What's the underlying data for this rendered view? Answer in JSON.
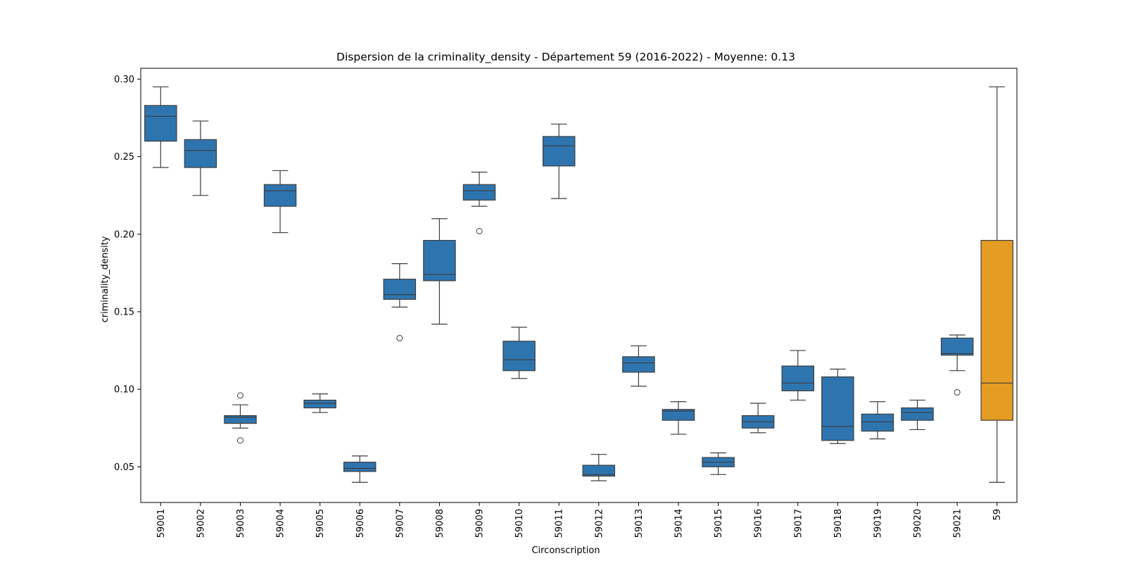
{
  "chart_data": {
    "type": "boxplot",
    "title": "Dispersion de la criminality_density - Département 59 (2016-2022) - Moyenne: 0.13",
    "xlabel": "Circonscription",
    "ylabel": "criminality_density",
    "ylim": [
      0.027,
      0.307
    ],
    "yticks": [
      0.05,
      0.1,
      0.15,
      0.2,
      0.25,
      0.3
    ],
    "ytick_labels": [
      "0.05",
      "0.10",
      "0.15",
      "0.20",
      "0.25",
      "0.30"
    ],
    "grid": false,
    "colors": {
      "default": "#2e75b0",
      "highlight": "#e49c23",
      "line": "#3d3d3d"
    },
    "boxes": [
      {
        "label": "59001",
        "whislo": 0.243,
        "q1": 0.26,
        "med": 0.276,
        "q3": 0.283,
        "whishi": 0.295,
        "fliers": []
      },
      {
        "label": "59002",
        "whislo": 0.225,
        "q1": 0.243,
        "med": 0.254,
        "q3": 0.261,
        "whishi": 0.273,
        "fliers": []
      },
      {
        "label": "59003",
        "whislo": 0.075,
        "q1": 0.078,
        "med": 0.082,
        "q3": 0.083,
        "whishi": 0.09,
        "fliers": [
          0.096,
          0.067
        ]
      },
      {
        "label": "59004",
        "whislo": 0.201,
        "q1": 0.218,
        "med": 0.228,
        "q3": 0.232,
        "whishi": 0.241,
        "fliers": []
      },
      {
        "label": "59005",
        "whislo": 0.085,
        "q1": 0.088,
        "med": 0.091,
        "q3": 0.093,
        "whishi": 0.097,
        "fliers": []
      },
      {
        "label": "59006",
        "whislo": 0.04,
        "q1": 0.047,
        "med": 0.049,
        "q3": 0.053,
        "whishi": 0.057,
        "fliers": []
      },
      {
        "label": "59007",
        "whislo": 0.153,
        "q1": 0.158,
        "med": 0.161,
        "q3": 0.171,
        "whishi": 0.181,
        "fliers": [
          0.133
        ]
      },
      {
        "label": "59008",
        "whislo": 0.142,
        "q1": 0.17,
        "med": 0.174,
        "q3": 0.196,
        "whishi": 0.21,
        "fliers": []
      },
      {
        "label": "59009",
        "whislo": 0.218,
        "q1": 0.222,
        "med": 0.228,
        "q3": 0.232,
        "whishi": 0.24,
        "fliers": [
          0.202
        ]
      },
      {
        "label": "59010",
        "whislo": 0.107,
        "q1": 0.112,
        "med": 0.119,
        "q3": 0.131,
        "whishi": 0.14,
        "fliers": []
      },
      {
        "label": "59011",
        "whislo": 0.223,
        "q1": 0.244,
        "med": 0.257,
        "q3": 0.263,
        "whishi": 0.271,
        "fliers": []
      },
      {
        "label": "59012",
        "whislo": 0.041,
        "q1": 0.044,
        "med": 0.045,
        "q3": 0.051,
        "whishi": 0.058,
        "fliers": []
      },
      {
        "label": "59013",
        "whislo": 0.102,
        "q1": 0.111,
        "med": 0.117,
        "q3": 0.121,
        "whishi": 0.128,
        "fliers": []
      },
      {
        "label": "59014",
        "whislo": 0.071,
        "q1": 0.08,
        "med": 0.086,
        "q3": 0.087,
        "whishi": 0.092,
        "fliers": []
      },
      {
        "label": "59015",
        "whislo": 0.045,
        "q1": 0.05,
        "med": 0.053,
        "q3": 0.056,
        "whishi": 0.059,
        "fliers": []
      },
      {
        "label": "59016",
        "whislo": 0.072,
        "q1": 0.075,
        "med": 0.079,
        "q3": 0.083,
        "whishi": 0.091,
        "fliers": []
      },
      {
        "label": "59017",
        "whislo": 0.093,
        "q1": 0.099,
        "med": 0.104,
        "q3": 0.115,
        "whishi": 0.125,
        "fliers": []
      },
      {
        "label": "59018",
        "whislo": 0.065,
        "q1": 0.067,
        "med": 0.076,
        "q3": 0.108,
        "whishi": 0.113,
        "fliers": []
      },
      {
        "label": "59019",
        "whislo": 0.068,
        "q1": 0.073,
        "med": 0.079,
        "q3": 0.084,
        "whishi": 0.092,
        "fliers": []
      },
      {
        "label": "59020",
        "whislo": 0.074,
        "q1": 0.08,
        "med": 0.085,
        "q3": 0.088,
        "whishi": 0.093,
        "fliers": []
      },
      {
        "label": "59021",
        "whislo": 0.112,
        "q1": 0.122,
        "med": 0.123,
        "q3": 0.133,
        "whishi": 0.135,
        "fliers": [
          0.098
        ]
      },
      {
        "label": "59",
        "whislo": 0.04,
        "q1": 0.08,
        "med": 0.104,
        "q3": 0.196,
        "whishi": 0.295,
        "fliers": [],
        "highlight": true
      }
    ]
  }
}
